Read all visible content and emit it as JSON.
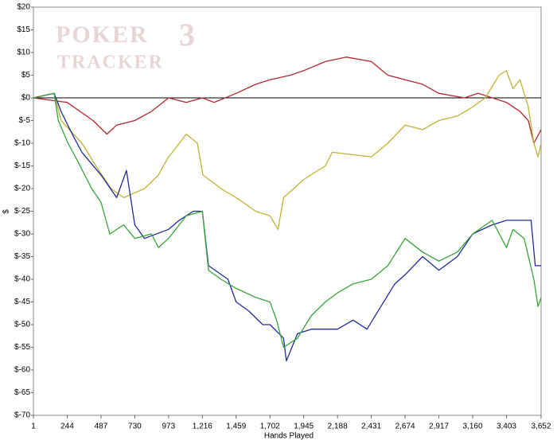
{
  "chart_data": {
    "type": "line",
    "watermark": [
      "POKER",
      "3",
      "TRACKER"
    ],
    "x_label": "Hands Played",
    "y_label": "$",
    "xlim": [
      1,
      3652
    ],
    "ylim": [
      -70,
      20
    ],
    "xticks": [
      1,
      244,
      487,
      730,
      973,
      {
        "value": 1216,
        "label": "1,216"
      },
      {
        "value": 1459,
        "label": "1,459"
      },
      {
        "value": 1702,
        "label": "1,702"
      },
      {
        "value": 1945,
        "label": "1,945"
      },
      {
        "value": 2188,
        "label": "2,188"
      },
      {
        "value": 2431,
        "label": "2,431"
      },
      {
        "value": 2674,
        "label": "2,674"
      },
      {
        "value": 2917,
        "label": "2,917"
      },
      {
        "value": 3160,
        "label": "3,160"
      },
      {
        "value": 3403,
        "label": "3,403"
      },
      {
        "value": 3652,
        "label": "3,652"
      }
    ],
    "yticks": [
      {
        "value": 20,
        "label": "$20"
      },
      {
        "value": 15,
        "label": "$15"
      },
      {
        "value": 10,
        "label": "$10"
      },
      {
        "value": 5,
        "label": "$5"
      },
      {
        "value": 0,
        "label": "$0"
      },
      {
        "value": -5,
        "label": "$-5"
      },
      {
        "value": -10,
        "label": "$-10"
      },
      {
        "value": -15,
        "label": "$-15"
      },
      {
        "value": -20,
        "label": "$-20"
      },
      {
        "value": -25,
        "label": "$-25"
      },
      {
        "value": -30,
        "label": "$-30"
      },
      {
        "value": -35,
        "label": "$-35"
      },
      {
        "value": -40,
        "label": "$-40"
      },
      {
        "value": -45,
        "label": "$-45"
      },
      {
        "value": -50,
        "label": "$-50"
      },
      {
        "value": -55,
        "label": "$-55"
      },
      {
        "value": -60,
        "label": "$-60"
      },
      {
        "value": -65,
        "label": "$-65"
      },
      {
        "value": -70,
        "label": "$-70"
      }
    ],
    "grid": false,
    "zero_line": true,
    "series": [
      {
        "color": "#b3282d",
        "x": [
          1,
          244,
          430,
          530,
          600,
          730,
          850,
          973,
          1100,
          1216,
          1300,
          1459,
          1600,
          1702,
          1850,
          1945,
          2100,
          2250,
          2431,
          2550,
          2674,
          2800,
          2917,
          3100,
          3200,
          3403,
          3500,
          3560,
          3600,
          3652
        ],
        "values": [
          0,
          -1,
          -5,
          -8,
          -6,
          -5,
          -3,
          0,
          -1,
          0,
          -1,
          1,
          3,
          4,
          5,
          6,
          8,
          9,
          8,
          5,
          4,
          3,
          1,
          0,
          1,
          -1,
          -3,
          -5,
          -10,
          -7
        ]
      },
      {
        "color": "#c2b233",
        "x": [
          1,
          150,
          200,
          350,
          450,
          560,
          650,
          800,
          900,
          973,
          1000,
          1100,
          1180,
          1220,
          1350,
          1459,
          1600,
          1702,
          1760,
          1800,
          1945,
          2100,
          2150,
          2431,
          2550,
          2674,
          2800,
          2917,
          3050,
          3160,
          3250,
          3350,
          3403,
          3450,
          3500,
          3560,
          3600,
          3630,
          3652
        ],
        "values": [
          0,
          1,
          -5,
          -10,
          -15,
          -20,
          -22,
          -20,
          -17,
          -13,
          -12,
          -8,
          -10,
          -17,
          -20,
          -22,
          -25,
          -26,
          -29,
          -22,
          -18,
          -15,
          -12,
          -13,
          -10,
          -6,
          -7,
          -5,
          -4,
          -2,
          0,
          5,
          6,
          2,
          4,
          -2,
          -10,
          -13,
          -10
        ]
      },
      {
        "color": "#1f2c9c",
        "x": [
          1,
          150,
          200,
          280,
          350,
          487,
          600,
          670,
          730,
          800,
          973,
          1050,
          1150,
          1216,
          1260,
          1400,
          1459,
          1550,
          1650,
          1702,
          1800,
          1820,
          1900,
          2000,
          2188,
          2300,
          2400,
          2500,
          2600,
          2674,
          2800,
          2917,
          3050,
          3160,
          3300,
          3403,
          3580,
          3610,
          3652
        ],
        "values": [
          0,
          1,
          -3,
          -8,
          -12,
          -17,
          -22,
          -16,
          -28,
          -31,
          -29,
          -27,
          -25,
          -25,
          -37,
          -40,
          -45,
          -47,
          -50,
          -50,
          -53,
          -58,
          -52,
          -51,
          -51,
          -49,
          -51,
          -46,
          -41,
          -39,
          -35,
          -38,
          -35,
          -30,
          -28,
          -27,
          -27,
          -37,
          -37
        ]
      },
      {
        "color": "#35a635",
        "x": [
          1,
          150,
          180,
          250,
          320,
          420,
          487,
          550,
          650,
          730,
          850,
          900,
          973,
          1050,
          1100,
          1216,
          1260,
          1350,
          1459,
          1600,
          1702,
          1750,
          1800,
          1900,
          2000,
          2100,
          2188,
          2300,
          2431,
          2550,
          2674,
          2800,
          2917,
          3050,
          3160,
          3300,
          3403,
          3450,
          3530,
          3600,
          3630,
          3652
        ],
        "values": [
          0,
          1,
          -5,
          -10,
          -14,
          -20,
          -23,
          -30,
          -28,
          -31,
          -30,
          -33,
          -31,
          -28,
          -26,
          -25,
          -38,
          -40,
          -42,
          -44,
          -45,
          -49,
          -55,
          -53,
          -48,
          -45,
          -43,
          -41,
          -40,
          -37,
          -31,
          -34,
          -36,
          -34,
          -30,
          -27,
          -33,
          -29,
          -31,
          -40,
          -46,
          -44
        ]
      }
    ]
  }
}
